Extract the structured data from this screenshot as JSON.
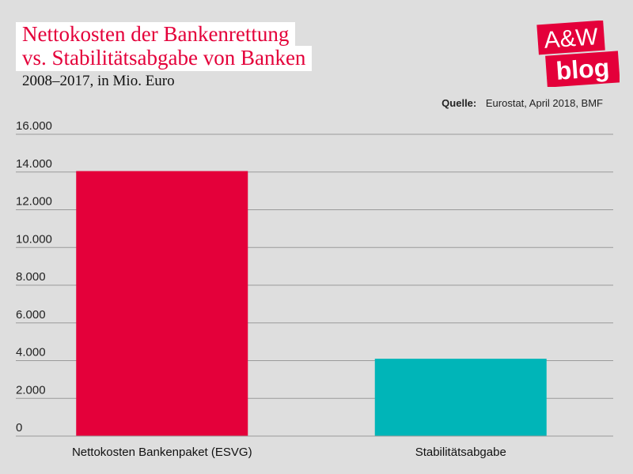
{
  "chart_data": {
    "type": "bar",
    "title": [
      "Nettokosten der Bankenrettung",
      "vs. Stabilitätsabgabe von Banken"
    ],
    "subtitle": "2008–2017, in Mio. Euro",
    "categories": [
      "Nettokosten Bankenpaket (ESVG)",
      "Stabilitätsabgabe"
    ],
    "values": [
      14050,
      4100
    ],
    "colors": [
      "#e4003a",
      "#00b5b8"
    ],
    "ylim": [
      0,
      16000
    ],
    "yticks": [
      0,
      2000,
      4000,
      6000,
      8000,
      10000,
      12000,
      14000,
      16000
    ],
    "ytick_labels": [
      "0",
      "2.000",
      "4.000",
      "6.000",
      "8.000",
      "10.000",
      "12.000",
      "14.000",
      "16.000"
    ],
    "grid": true
  },
  "source": {
    "label": "Quelle:",
    "text": "Eurostat, April 2018, BMF"
  },
  "logo": {
    "line1": "A&W",
    "line2": "blog",
    "color": "#e4003a",
    "icon": "aw-blog-logo"
  }
}
